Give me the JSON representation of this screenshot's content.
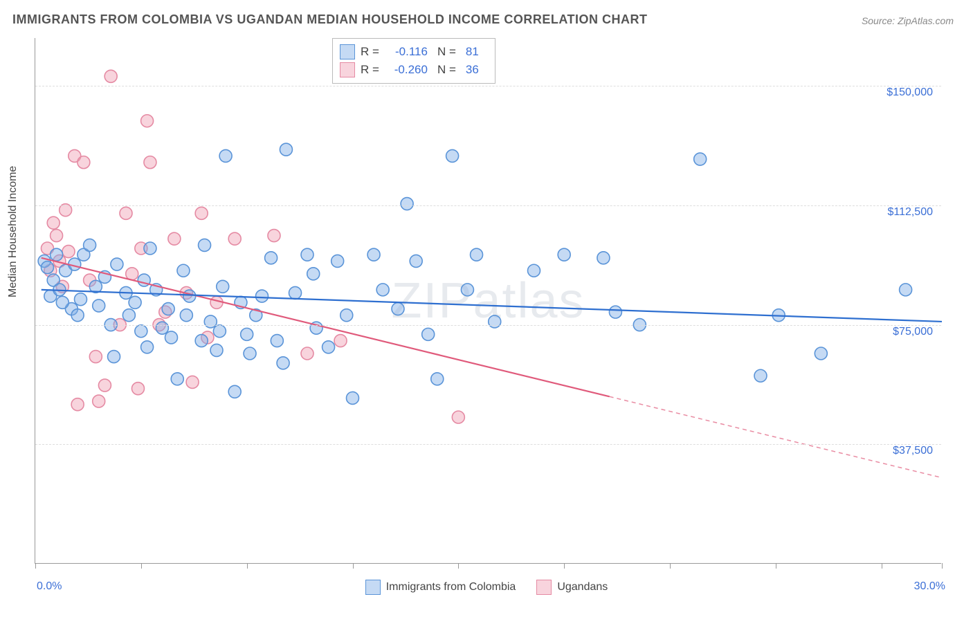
{
  "title": "IMMIGRANTS FROM COLOMBIA VS UGANDAN MEDIAN HOUSEHOLD INCOME CORRELATION CHART",
  "source": "Source: ZipAtlas.com",
  "watermark": "ZIPatlas",
  "y_axis_title": "Median Household Income",
  "chart": {
    "type": "scatter",
    "xlim": [
      0,
      30
    ],
    "ylim": [
      0,
      165000
    ],
    "x_tick_positions": [
      0,
      3.5,
      7,
      10.5,
      14,
      17.5,
      21,
      24.5,
      28,
      30
    ],
    "y_ticks": [
      {
        "v": 37500,
        "label": "$37,500"
      },
      {
        "v": 75000,
        "label": "$75,000"
      },
      {
        "v": 112500,
        "label": "$112,500"
      },
      {
        "v": 150000,
        "label": "$150,000"
      }
    ],
    "x_label_min": "0.0%",
    "x_label_max": "30.0%",
    "background_color": "#ffffff",
    "grid_color": "#dddddd",
    "axis_color": "#999999",
    "marker_radius": 9,
    "marker_stroke_width": 1.6,
    "line_width": 2.2,
    "series": [
      {
        "name": "Immigrants from Colombia",
        "fill": "rgba(126,174,230,0.45)",
        "stroke": "#5a94d8",
        "line_color": "#2e6fd0",
        "R": "-0.116",
        "N": "81",
        "trend": {
          "x1": 0.2,
          "y1": 86000,
          "x2": 30,
          "y2": 76000,
          "solid_to_x": 30
        },
        "points": [
          [
            0.3,
            95000
          ],
          [
            0.4,
            93000
          ],
          [
            0.6,
            89000
          ],
          [
            0.5,
            84000
          ],
          [
            0.7,
            97000
          ],
          [
            0.8,
            86000
          ],
          [
            1.0,
            92000
          ],
          [
            1.2,
            80000
          ],
          [
            1.3,
            94000
          ],
          [
            1.5,
            83000
          ],
          [
            1.6,
            97000
          ],
          [
            1.8,
            100000
          ],
          [
            2.0,
            87000
          ],
          [
            2.1,
            81000
          ],
          [
            2.3,
            90000
          ],
          [
            2.5,
            75000
          ],
          [
            2.7,
            94000
          ],
          [
            3.0,
            85000
          ],
          [
            3.1,
            78000
          ],
          [
            3.3,
            82000
          ],
          [
            3.5,
            73000
          ],
          [
            3.7,
            68000
          ],
          [
            3.8,
            99000
          ],
          [
            4.0,
            86000
          ],
          [
            4.2,
            74000
          ],
          [
            4.4,
            80000
          ],
          [
            4.5,
            71000
          ],
          [
            4.7,
            58000
          ],
          [
            4.9,
            92000
          ],
          [
            5.0,
            78000
          ],
          [
            5.1,
            84000
          ],
          [
            5.5,
            70000
          ],
          [
            5.6,
            100000
          ],
          [
            5.8,
            76000
          ],
          [
            6.0,
            67000
          ],
          [
            6.1,
            73000
          ],
          [
            6.3,
            128000
          ],
          [
            6.6,
            54000
          ],
          [
            6.8,
            82000
          ],
          [
            7.0,
            72000
          ],
          [
            7.1,
            66000
          ],
          [
            7.3,
            78000
          ],
          [
            7.8,
            96000
          ],
          [
            8.0,
            70000
          ],
          [
            8.2,
            63000
          ],
          [
            8.3,
            130000
          ],
          [
            8.6,
            85000
          ],
          [
            9.0,
            97000
          ],
          [
            9.2,
            91000
          ],
          [
            9.3,
            74000
          ],
          [
            9.7,
            68000
          ],
          [
            10.0,
            95000
          ],
          [
            10.3,
            78000
          ],
          [
            10.5,
            52000
          ],
          [
            11.2,
            97000
          ],
          [
            11.5,
            86000
          ],
          [
            12.0,
            80000
          ],
          [
            12.3,
            113000
          ],
          [
            12.6,
            95000
          ],
          [
            13.0,
            72000
          ],
          [
            13.3,
            58000
          ],
          [
            13.8,
            128000
          ],
          [
            14.3,
            86000
          ],
          [
            14.6,
            97000
          ],
          [
            15.2,
            76000
          ],
          [
            16.5,
            92000
          ],
          [
            17.5,
            97000
          ],
          [
            18.8,
            96000
          ],
          [
            19.2,
            79000
          ],
          [
            20.0,
            75000
          ],
          [
            22.0,
            127000
          ],
          [
            24.0,
            59000
          ],
          [
            24.6,
            78000
          ],
          [
            26.0,
            66000
          ],
          [
            28.8,
            86000
          ],
          [
            0.9,
            82000
          ],
          [
            1.4,
            78000
          ],
          [
            2.6,
            65000
          ],
          [
            3.6,
            89000
          ],
          [
            6.2,
            87000
          ],
          [
            7.5,
            84000
          ]
        ]
      },
      {
        "name": "Ugandans",
        "fill": "rgba(240,160,180,0.45)",
        "stroke": "#e58aa3",
        "line_color": "#e05a7b",
        "R": "-0.260",
        "N": "36",
        "trend": {
          "x1": 0.2,
          "y1": 96000,
          "x2": 30,
          "y2": 27000,
          "solid_to_x": 19
        },
        "points": [
          [
            0.4,
            99000
          ],
          [
            0.5,
            92000
          ],
          [
            0.6,
            107000
          ],
          [
            0.7,
            103000
          ],
          [
            0.8,
            95000
          ],
          [
            0.9,
            87000
          ],
          [
            1.0,
            111000
          ],
          [
            1.1,
            98000
          ],
          [
            1.3,
            128000
          ],
          [
            1.6,
            126000
          ],
          [
            1.8,
            89000
          ],
          [
            2.0,
            65000
          ],
          [
            2.1,
            51000
          ],
          [
            2.3,
            56000
          ],
          [
            2.5,
            153000
          ],
          [
            1.4,
            50000
          ],
          [
            2.8,
            75000
          ],
          [
            3.0,
            110000
          ],
          [
            3.2,
            91000
          ],
          [
            3.5,
            99000
          ],
          [
            3.7,
            139000
          ],
          [
            3.8,
            126000
          ],
          [
            4.1,
            75000
          ],
          [
            4.3,
            79000
          ],
          [
            3.4,
            55000
          ],
          [
            4.6,
            102000
          ],
          [
            5.0,
            85000
          ],
          [
            5.2,
            57000
          ],
          [
            5.5,
            110000
          ],
          [
            5.7,
            71000
          ],
          [
            6.0,
            82000
          ],
          [
            6.6,
            102000
          ],
          [
            7.9,
            103000
          ],
          [
            9.0,
            66000
          ],
          [
            10.1,
            70000
          ],
          [
            14.0,
            46000
          ]
        ]
      }
    ]
  }
}
